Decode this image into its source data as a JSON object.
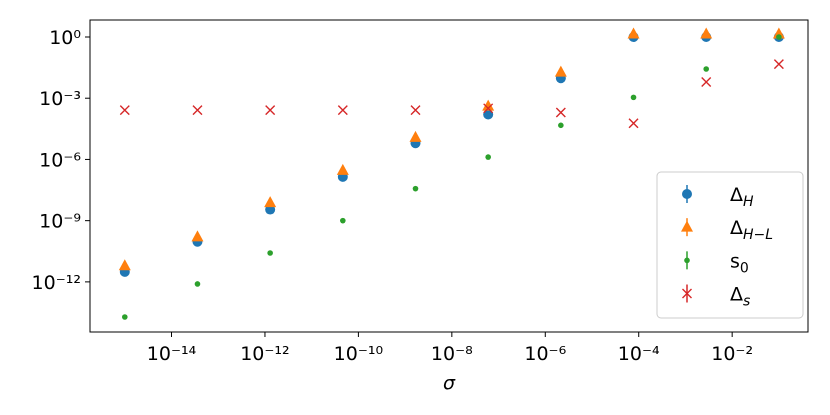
{
  "chart_data": {
    "type": "scatter",
    "log_x": true,
    "log_y": true,
    "x_label": "σ",
    "x": [
      1e-15,
      3.594e-14,
      1.292e-12,
      4.642e-11,
      1.668e-09,
      5.995e-08,
      2.154e-06,
      7.743e-05,
      0.002783,
      0.1
    ],
    "xlim": [
      1.8e-16,
      0.42
    ],
    "ylim": [
      3.5e-15,
      6.8
    ],
    "xticks": [
      {
        "value": 1e-14,
        "label": "10⁻¹⁴"
      },
      {
        "value": 1e-12,
        "label": "10⁻¹²"
      },
      {
        "value": 1e-10,
        "label": "10⁻¹⁰"
      },
      {
        "value": 1e-08,
        "label": "10⁻⁸"
      },
      {
        "value": 1e-06,
        "label": "10⁻⁶"
      },
      {
        "value": 0.0001,
        "label": "10⁻⁴"
      },
      {
        "value": 0.01,
        "label": "10⁻²"
      }
    ],
    "yticks": [
      {
        "value": 1e-12,
        "label": "10⁻¹²"
      },
      {
        "value": 1e-09,
        "label": "10⁻⁹"
      },
      {
        "value": 1e-06,
        "label": "10⁻⁶"
      },
      {
        "value": 0.001,
        "label": "10⁻³"
      },
      {
        "value": 1,
        "label": "10⁰"
      }
    ],
    "legend": "lower right",
    "series": [
      {
        "name": "ΔH",
        "color": "#1f77b4",
        "marker": "circle",
        "values": [
          3.1e-12,
          9.3e-11,
          3.5e-09,
          1.4e-07,
          6.2e-06,
          0.00016,
          0.0095,
          1,
          1,
          1
        ]
      },
      {
        "name": "ΔH−L",
        "color": "#ff7f0e",
        "marker": "triangle",
        "values": [
          6.2e-12,
          1.6e-10,
          7.6e-09,
          2.9e-07,
          1.2e-05,
          0.00041,
          0.019,
          1.4,
          1.4,
          1.4
        ]
      },
      {
        "name": "s0",
        "color": "#2ca02c",
        "marker": "dot",
        "values": [
          1.9e-14,
          7.9e-13,
          2.6e-11,
          1e-09,
          3.7e-08,
          1.3e-06,
          4.7e-05,
          0.0011,
          0.027,
          1
        ]
      },
      {
        "name": "Δs",
        "color": "#d62728",
        "marker": "x",
        "values": [
          0.00026,
          0.00026,
          0.00026,
          0.00026,
          0.00026,
          0.00032,
          0.0002,
          5.9e-05,
          0.0062,
          0.047
        ]
      }
    ]
  }
}
